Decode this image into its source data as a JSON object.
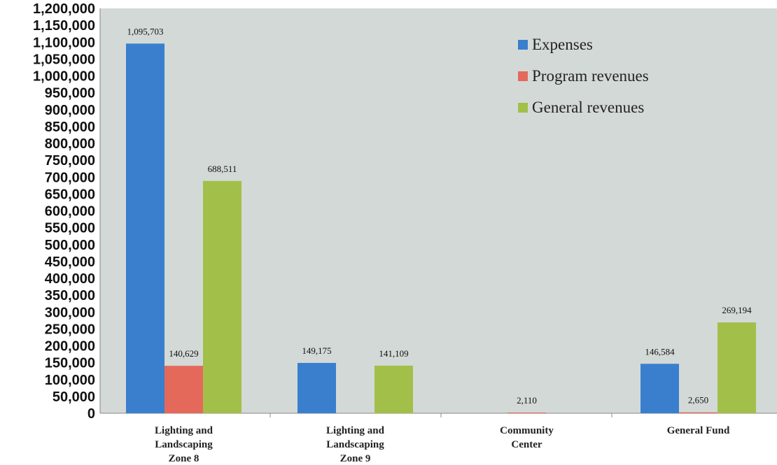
{
  "colors": {
    "plot_bg": "#d3d9d6",
    "axis": "#888888"
  },
  "chart_data": {
    "type": "bar",
    "categories": [
      [
        "Lighting and",
        "Landscaping",
        "Zone 8"
      ],
      [
        "Lighting and",
        "Landscaping",
        "Zone 9"
      ],
      [
        "Community",
        "Center"
      ],
      [
        "General Fund"
      ]
    ],
    "series": [
      {
        "name": "Expenses",
        "color": "#3a7fce",
        "values": [
          1095703,
          149175,
          null,
          146584
        ],
        "labels": [
          "1,095,703",
          "149,175",
          null,
          "146,584"
        ]
      },
      {
        "name": "Program revenues",
        "color": "#e4695b",
        "values": [
          140629,
          null,
          2110,
          2650
        ],
        "labels": [
          "140,629",
          null,
          "2,110",
          "2,650"
        ]
      },
      {
        "name": "General revenues",
        "color": "#a2bf4a",
        "values": [
          688511,
          141109,
          null,
          269194
        ],
        "labels": [
          "688,511",
          "141,109",
          null,
          "269,194"
        ]
      }
    ],
    "ylim": [
      0,
      1200000
    ],
    "ytick_step": 50000,
    "yticks": [
      "0",
      "50,000",
      "100,000",
      "150,000",
      "200,000",
      "250,000",
      "300,000",
      "350,000",
      "400,000",
      "450,000",
      "500,000",
      "550,000",
      "600,000",
      "650,000",
      "700,000",
      "750,000",
      "800,000",
      "850,000",
      "900,000",
      "950,000",
      "1,000,000",
      "1,050,000",
      "1,100,000",
      "1,150,000",
      "1,200,000"
    ],
    "title": "",
    "xlabel": "",
    "ylabel": "",
    "legend_position": "top-right",
    "grid": false
  }
}
